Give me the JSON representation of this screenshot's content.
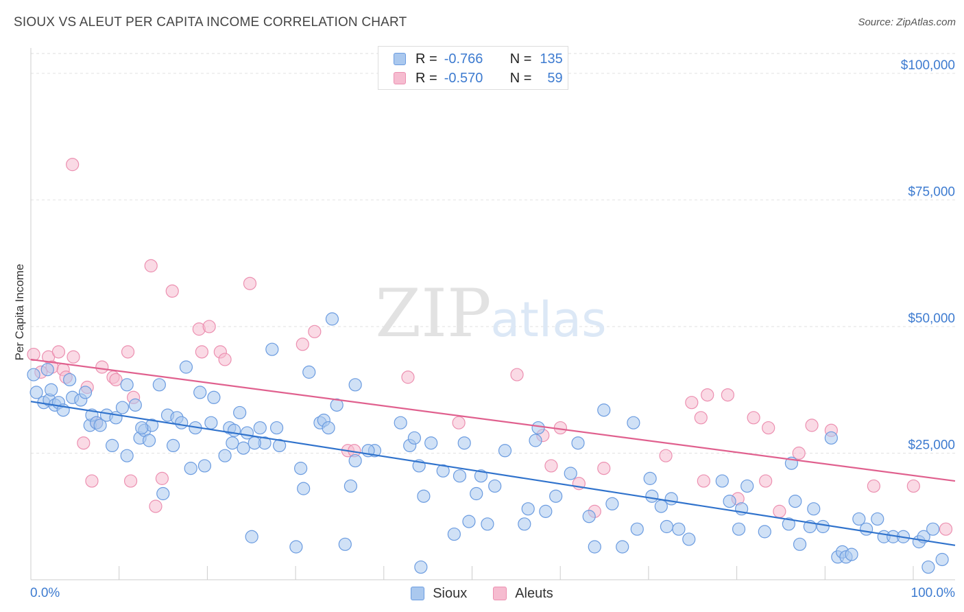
{
  "header": {
    "title": "SIOUX VS ALEUT PER CAPITA INCOME CORRELATION CHART",
    "source": "Source: ZipAtlas.com"
  },
  "watermark": {
    "zip": "ZIP",
    "atlas": "atlas"
  },
  "legend": {
    "rows": [
      {
        "r_label": "R =",
        "r_value": "-0.766",
        "n_label": "N =",
        "n_value": "135"
      },
      {
        "r_label": "R =",
        "r_value": "-0.570",
        "n_label": "N =",
        "n_value": "59"
      }
    ]
  },
  "colors": {
    "sioux_fill": "#aac8ee",
    "sioux_stroke": "#6a9be0",
    "sioux_line": "#2f72cc",
    "aleut_fill": "#f6bcd0",
    "aleut_stroke": "#ec8fb0",
    "aleut_line": "#e0608e",
    "tick_text": "#3d7bd0"
  },
  "chart_data": {
    "type": "scatter",
    "ylabel": "Per Capita Income",
    "xlim": [
      0,
      100
    ],
    "ylim": [
      0,
      105000
    ],
    "x_tick_labels": [
      "0.0%",
      "100.0%"
    ],
    "y_ticks": [
      {
        "value": 25000,
        "label": "$25,000"
      },
      {
        "value": 50000,
        "label": "$50,000"
      },
      {
        "value": 75000,
        "label": "$75,000"
      },
      {
        "value": 100000,
        "label": "$100,000"
      }
    ],
    "grid": "horizontal-dashed",
    "legend_position": "top-center",
    "series": [
      {
        "name": "Sioux",
        "trend": {
          "x": [
            0,
            100
          ],
          "y": [
            35200,
            6800
          ]
        },
        "points": [
          [
            0.6,
            37000
          ],
          [
            1.4,
            35000
          ],
          [
            1.8,
            41500
          ],
          [
            2.0,
            35500
          ],
          [
            2.2,
            37500
          ],
          [
            2.6,
            34500
          ],
          [
            3.0,
            35000
          ],
          [
            3.5,
            33500
          ],
          [
            4.2,
            39500
          ],
          [
            4.5,
            36000
          ],
          [
            5.4,
            35500
          ],
          [
            5.9,
            37000
          ],
          [
            6.4,
            30500
          ],
          [
            6.6,
            32500
          ],
          [
            7.1,
            31000
          ],
          [
            7.5,
            30500
          ],
          [
            8.2,
            32500
          ],
          [
            8.8,
            26500
          ],
          [
            9.2,
            32000
          ],
          [
            9.9,
            34000
          ],
          [
            10.4,
            24500
          ],
          [
            10.4,
            38500
          ],
          [
            11.3,
            34500
          ],
          [
            11.8,
            28000
          ],
          [
            12.3,
            29500
          ],
          [
            12.8,
            27500
          ],
          [
            13.1,
            30500
          ],
          [
            13.9,
            38500
          ],
          [
            14.3,
            17000
          ],
          [
            14.8,
            32500
          ],
          [
            15.4,
            26500
          ],
          [
            15.8,
            32000
          ],
          [
            16.3,
            31000
          ],
          [
            16.8,
            42000
          ],
          [
            17.3,
            22000
          ],
          [
            17.8,
            30000
          ],
          [
            18.3,
            37000
          ],
          [
            18.8,
            22500
          ],
          [
            19.5,
            31000
          ],
          [
            19.8,
            36000
          ],
          [
            21.0,
            24500
          ],
          [
            21.5,
            30000
          ],
          [
            21.8,
            27000
          ],
          [
            22.0,
            29500
          ],
          [
            22.6,
            33000
          ],
          [
            23.0,
            26000
          ],
          [
            23.4,
            29000
          ],
          [
            23.9,
            8500
          ],
          [
            24.8,
            30000
          ],
          [
            25.3,
            27000
          ],
          [
            26.1,
            45500
          ],
          [
            26.6,
            30000
          ],
          [
            26.9,
            26500
          ],
          [
            28.7,
            6500
          ],
          [
            29.2,
            22000
          ],
          [
            29.5,
            18000
          ],
          [
            30.1,
            41000
          ],
          [
            31.3,
            31000
          ],
          [
            31.7,
            31500
          ],
          [
            32.2,
            30000
          ],
          [
            32.6,
            51500
          ],
          [
            33.1,
            34500
          ],
          [
            34.0,
            7000
          ],
          [
            34.6,
            18500
          ],
          [
            35.1,
            38500
          ],
          [
            35.1,
            23500
          ],
          [
            37.2,
            25500
          ],
          [
            40.0,
            31000
          ],
          [
            41.0,
            26500
          ],
          [
            41.5,
            28000
          ],
          [
            42.0,
            22500
          ],
          [
            42.2,
            2500
          ],
          [
            42.5,
            16500
          ],
          [
            43.3,
            27000
          ],
          [
            44.6,
            21500
          ],
          [
            45.8,
            9000
          ],
          [
            46.4,
            20500
          ],
          [
            46.9,
            27000
          ],
          [
            47.4,
            11500
          ],
          [
            48.2,
            17000
          ],
          [
            48.7,
            20500
          ],
          [
            49.4,
            11000
          ],
          [
            50.2,
            18500
          ],
          [
            51.3,
            25500
          ],
          [
            53.4,
            11000
          ],
          [
            53.8,
            14000
          ],
          [
            54.6,
            27500
          ],
          [
            54.9,
            30000
          ],
          [
            55.7,
            13500
          ],
          [
            56.8,
            16500
          ],
          [
            58.4,
            21000
          ],
          [
            59.2,
            27000
          ],
          [
            60.4,
            12500
          ],
          [
            61.0,
            6500
          ],
          [
            62.0,
            33500
          ],
          [
            62.9,
            15000
          ],
          [
            64.0,
            6500
          ],
          [
            65.2,
            31000
          ],
          [
            65.6,
            10000
          ],
          [
            67.0,
            20000
          ],
          [
            67.2,
            16500
          ],
          [
            68.2,
            14500
          ],
          [
            68.8,
            10500
          ],
          [
            69.3,
            16000
          ],
          [
            70.1,
            10000
          ],
          [
            71.2,
            8000
          ],
          [
            74.8,
            19500
          ],
          [
            75.6,
            15500
          ],
          [
            76.6,
            10000
          ],
          [
            76.9,
            14000
          ],
          [
            77.5,
            18500
          ],
          [
            79.4,
            9500
          ],
          [
            82.0,
            11000
          ],
          [
            82.3,
            23000
          ],
          [
            82.7,
            15500
          ],
          [
            83.2,
            7000
          ],
          [
            84.3,
            10500
          ],
          [
            84.7,
            14000
          ],
          [
            85.7,
            10500
          ],
          [
            86.6,
            28000
          ],
          [
            87.3,
            4500
          ],
          [
            87.8,
            5500
          ],
          [
            88.2,
            4500
          ],
          [
            88.8,
            5000
          ],
          [
            89.6,
            12000
          ],
          [
            90.4,
            10000
          ],
          [
            91.6,
            12000
          ],
          [
            92.3,
            8500
          ],
          [
            93.3,
            8500
          ],
          [
            94.4,
            8500
          ],
          [
            96.1,
            7500
          ],
          [
            96.6,
            8500
          ],
          [
            97.1,
            2500
          ],
          [
            97.6,
            10000
          ],
          [
            98.6,
            4000
          ],
          [
            0.3,
            40500
          ],
          [
            12.0,
            30000
          ],
          [
            24.2,
            27000
          ],
          [
            36.5,
            25500
          ]
        ]
      },
      {
        "name": "Aleuts",
        "trend": {
          "x": [
            0,
            100
          ],
          "y": [
            43500,
            19500
          ]
        },
        "points": [
          [
            0.3,
            44500
          ],
          [
            1.1,
            41000
          ],
          [
            1.9,
            44000
          ],
          [
            2.3,
            42000
          ],
          [
            3.0,
            45000
          ],
          [
            3.5,
            41500
          ],
          [
            3.8,
            40000
          ],
          [
            4.5,
            82000
          ],
          [
            4.6,
            44000
          ],
          [
            5.7,
            27000
          ],
          [
            6.1,
            38000
          ],
          [
            6.6,
            19500
          ],
          [
            7.1,
            31000
          ],
          [
            7.7,
            42000
          ],
          [
            8.9,
            40000
          ],
          [
            9.2,
            39500
          ],
          [
            10.5,
            45000
          ],
          [
            10.8,
            19500
          ],
          [
            11.1,
            36000
          ],
          [
            13.0,
            62000
          ],
          [
            13.5,
            14500
          ],
          [
            14.2,
            20000
          ],
          [
            15.3,
            57000
          ],
          [
            18.2,
            49500
          ],
          [
            18.5,
            45000
          ],
          [
            19.3,
            50000
          ],
          [
            20.5,
            45000
          ],
          [
            21.0,
            43500
          ],
          [
            23.7,
            58500
          ],
          [
            29.4,
            46500
          ],
          [
            30.7,
            49000
          ],
          [
            34.3,
            25500
          ],
          [
            35.0,
            25500
          ],
          [
            40.8,
            40000
          ],
          [
            46.3,
            31000
          ],
          [
            52.6,
            40500
          ],
          [
            55.4,
            28500
          ],
          [
            56.3,
            22500
          ],
          [
            57.3,
            30000
          ],
          [
            59.3,
            19000
          ],
          [
            61.0,
            13500
          ],
          [
            62.0,
            22000
          ],
          [
            68.7,
            24500
          ],
          [
            71.5,
            35000
          ],
          [
            72.5,
            32000
          ],
          [
            72.8,
            19500
          ],
          [
            73.2,
            36500
          ],
          [
            75.4,
            36500
          ],
          [
            76.5,
            16000
          ],
          [
            78.2,
            32000
          ],
          [
            79.5,
            19500
          ],
          [
            79.8,
            30000
          ],
          [
            81.0,
            13500
          ],
          [
            83.1,
            25000
          ],
          [
            84.5,
            30500
          ],
          [
            86.6,
            29500
          ],
          [
            91.2,
            18500
          ],
          [
            95.5,
            18500
          ],
          [
            99.0,
            10000
          ]
        ]
      }
    ]
  },
  "bottom_legend": {
    "items": [
      "Sioux",
      "Aleuts"
    ]
  }
}
